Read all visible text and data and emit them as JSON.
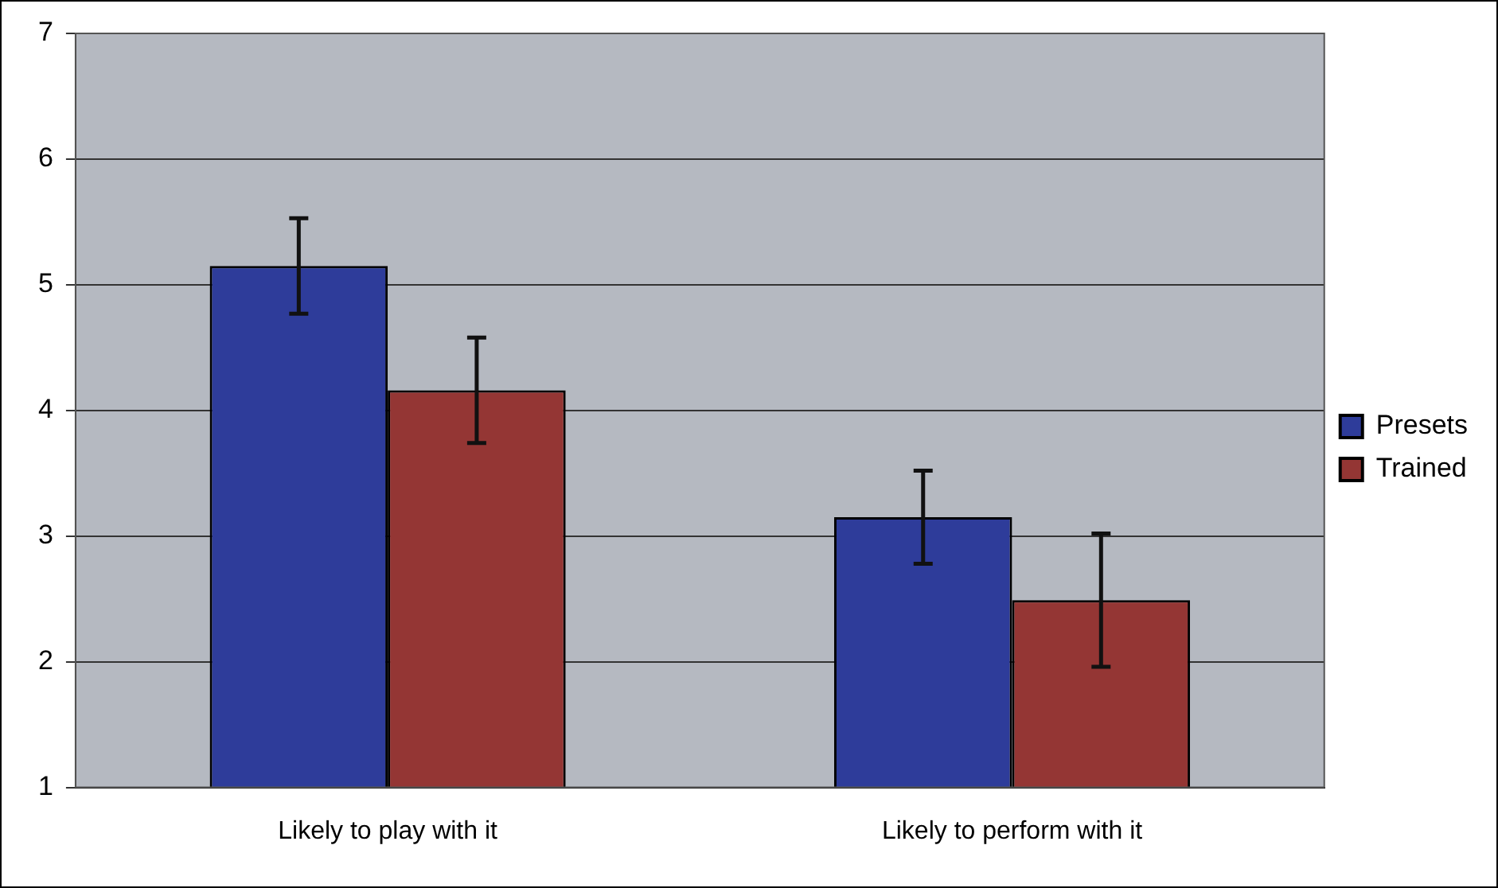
{
  "chart_data": {
    "type": "bar",
    "categories": [
      "Likely to play with it",
      "Likely to perform with it"
    ],
    "series": [
      {
        "name": "Presets",
        "color": "#2e3c9a",
        "values": [
          5.15,
          3.15
        ],
        "errors": [
          0.38,
          0.37
        ]
      },
      {
        "name": "Trained",
        "color": "#943634",
        "values": [
          4.16,
          2.49
        ],
        "errors": [
          0.42,
          0.53
        ]
      }
    ],
    "ylim": [
      1,
      7
    ],
    "yticks": [
      1,
      2,
      3,
      4,
      5,
      6,
      7
    ],
    "grid": "y",
    "legend": "right"
  }
}
